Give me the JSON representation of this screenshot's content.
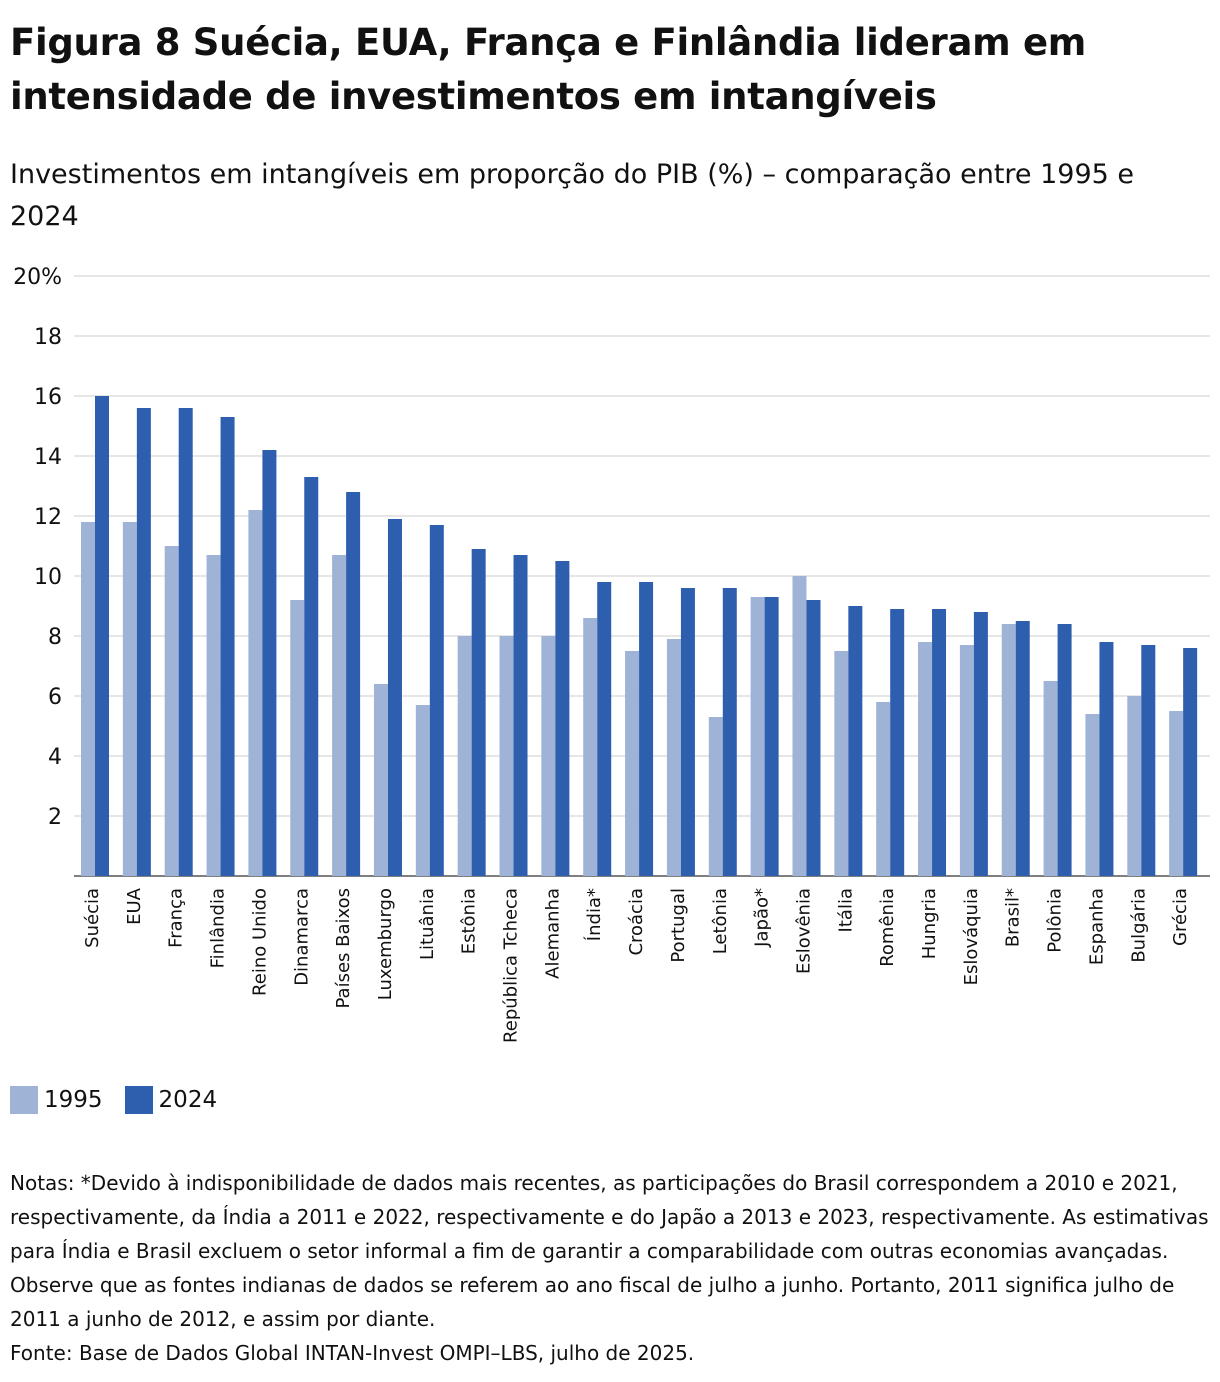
{
  "title": "Figura 8 Suécia, EUA, França e Finlândia lideram em intensidade de investimentos em intangíveis",
  "subtitle": "Investimentos em intangíveis em proporção do PIB (%) – comparação entre 1995 e 2024",
  "colors": {
    "series_1995": "#9fb3d6",
    "series_2024": "#2e5faf",
    "grid": "#dddddd",
    "axis": "#555555"
  },
  "chart_data": {
    "type": "bar",
    "title": "Investimentos em intangíveis em proporção do PIB (%)",
    "xlabel": "",
    "ylabel": "",
    "ylim": [
      0,
      20
    ],
    "yticks": [
      {
        "value": 20,
        "label": "20%"
      },
      {
        "value": 18,
        "label": "18"
      },
      {
        "value": 16,
        "label": "16"
      },
      {
        "value": 14,
        "label": "14"
      },
      {
        "value": 12,
        "label": "12"
      },
      {
        "value": 10,
        "label": "10"
      },
      {
        "value": 8,
        "label": "8"
      },
      {
        "value": 6,
        "label": "6"
      },
      {
        "value": 4,
        "label": "4"
      },
      {
        "value": 2,
        "label": "2"
      }
    ],
    "categories": [
      "Suécia",
      "EUA",
      "França",
      "Finlândia",
      "Reino Unido",
      "Dinamarca",
      "Países Baixos",
      "Luxemburgo",
      "Lituânia",
      "Estônia",
      "República Tcheca",
      "Alemanha",
      "Índia*",
      "Croácia",
      "Portugal",
      "Letônia",
      "Japão*",
      "Eslovênia",
      "Itália",
      "Romênia",
      "Hungria",
      "Eslováquia",
      "Brasil*",
      "Polônia",
      "Espanha",
      "Bulgária",
      "Grécia"
    ],
    "series": [
      {
        "name": "1995",
        "values": [
          11.8,
          11.8,
          11.0,
          10.7,
          12.2,
          9.2,
          10.7,
          6.4,
          5.7,
          8.0,
          8.0,
          8.0,
          8.6,
          7.5,
          7.9,
          5.3,
          9.3,
          10.0,
          7.5,
          5.8,
          7.8,
          7.7,
          8.4,
          6.5,
          5.4,
          6.0,
          5.5
        ]
      },
      {
        "name": "2024",
        "values": [
          16.0,
          15.6,
          15.6,
          15.3,
          14.2,
          13.3,
          12.8,
          11.9,
          11.7,
          10.9,
          10.7,
          10.5,
          9.8,
          9.8,
          9.6,
          9.6,
          9.3,
          9.2,
          9.0,
          8.9,
          8.9,
          8.8,
          8.5,
          8.4,
          7.8,
          7.7,
          7.6
        ]
      }
    ],
    "legend": [
      "1995",
      "2024"
    ]
  },
  "notes": {
    "text": "Notas: *Devido à indisponibilidade de dados mais recentes, as participações do Brasil correspondem a 2010 e 2021, respectivamente, da Índia a 2011 e 2022, respectivamente e do Japão a 2013 e 2023, respectivamente. As estimativas para Índia e Brasil excluem o setor informal a fim de garantir a comparabilidade com outras economias avançadas. Observe que as fontes indianas de dados se referem ao ano fiscal de julho a junho. Portanto, 2011 significa julho de 2011 a junho de 2012, e assim por diante.",
    "source": "Fonte: Base de Dados Global INTAN-Invest OMPI–LBS, julho de 2025."
  }
}
